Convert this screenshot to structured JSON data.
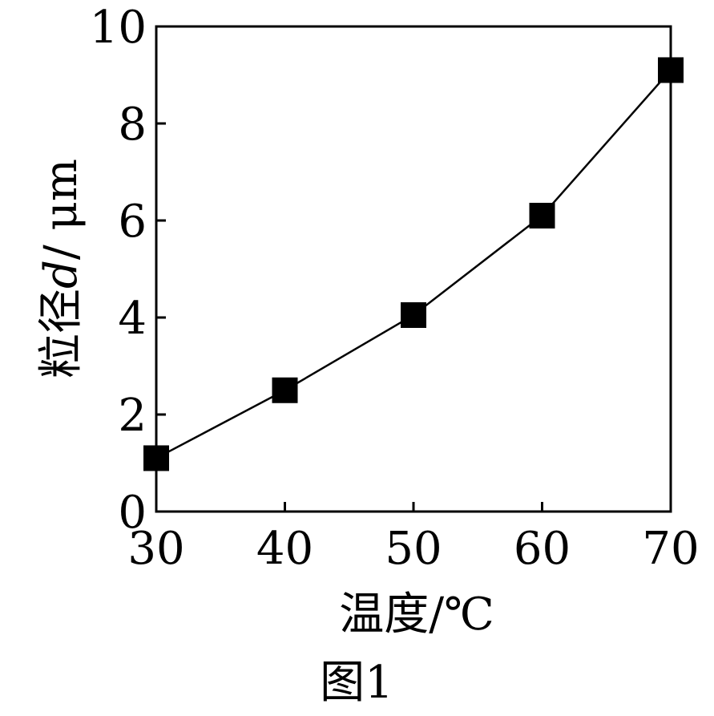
{
  "caption": "图1",
  "chart_data": {
    "type": "line",
    "title": "",
    "xlabel": "温度/℃",
    "ylabel_prefix": "粒径",
    "ylabel_var": "d",
    "ylabel_unit": "/ μm",
    "x": [
      30,
      40,
      50,
      60,
      70
    ],
    "series": [
      {
        "values": [
          1.1,
          2.5,
          4.05,
          6.1,
          9.1
        ]
      }
    ],
    "xlim": [
      30,
      70
    ],
    "ylim": [
      0,
      10
    ],
    "xticks": [
      30,
      40,
      50,
      60,
      70
    ],
    "yticks": [
      0,
      2,
      4,
      6,
      8,
      10
    ],
    "marker": "square",
    "line_color": "#000000",
    "grid": false,
    "legend": "none"
  }
}
